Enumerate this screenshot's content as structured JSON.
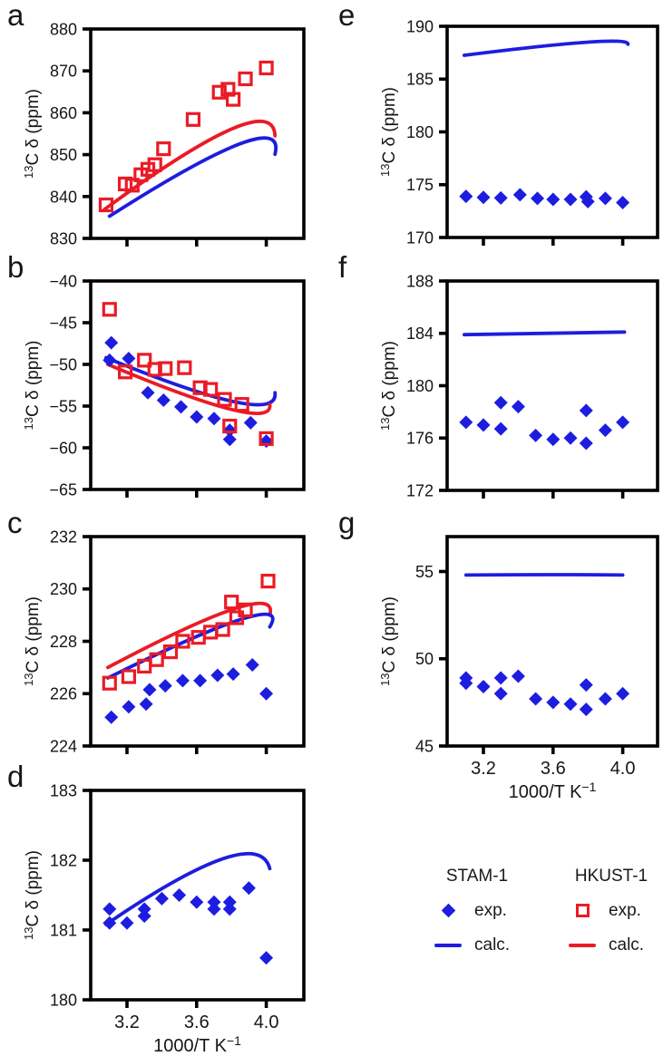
{
  "colors": {
    "stam": "#1d1de0",
    "hkust": "#ea1b26",
    "axis": "#000000"
  },
  "axes": {
    "ylabel_sup": "13",
    "ylabel_text": "C δ (ppm)",
    "xlabel_text": "1000/T K",
    "xlabel_sup": "−1"
  },
  "legend": {
    "stam": {
      "title": "STAM-1",
      "exp_label": "exp.",
      "calc_label": "calc."
    },
    "hkust": {
      "title": "HKUST-1",
      "exp_label": "exp.",
      "calc_label": "calc."
    }
  },
  "chart_data": [
    {
      "id": "a",
      "panel_label": "a",
      "type": "scatter",
      "xlim": [
        2.99,
        4.21
      ],
      "xticks": [
        3.2,
        3.6,
        4.0
      ],
      "ylim": [
        830,
        880
      ],
      "yticks": [
        830,
        840,
        850,
        860,
        870,
        880
      ],
      "ylabel": "13C δ (ppm)",
      "xlabel": "1000/T K−1",
      "show_x_tick_labels": false,
      "series": [
        {
          "name": "HKUST-1 calc.",
          "style": "line",
          "color_key": "hkust",
          "curve": {
            "start": [
              3.07,
              836.9
            ],
            "peak": [
              3.8,
              856.1
            ],
            "end": [
              4.05,
              854.5
            ]
          }
        },
        {
          "name": "STAM-1 calc.",
          "style": "line",
          "color_key": "stam",
          "curve": {
            "start": [
              3.1,
              835.3
            ],
            "peak": [
              3.85,
              852.6
            ],
            "end": [
              4.05,
              850.1
            ]
          }
        },
        {
          "name": "HKUST-1 exp.",
          "style": "open-square",
          "color_key": "hkust",
          "points": [
            [
              3.08,
              838.0
            ],
            [
              3.19,
              843.0
            ],
            [
              3.23,
              842.7
            ],
            [
              3.28,
              845.2
            ],
            [
              3.32,
              846.5
            ],
            [
              3.36,
              847.6
            ],
            [
              3.41,
              851.4
            ],
            [
              3.58,
              858.4
            ],
            [
              3.73,
              864.9
            ],
            [
              3.78,
              865.6
            ],
            [
              3.81,
              863.2
            ],
            [
              3.88,
              868.1
            ],
            [
              4.0,
              870.7
            ]
          ]
        }
      ]
    },
    {
      "id": "b",
      "panel_label": "b",
      "type": "scatter",
      "xlim": [
        2.99,
        4.21
      ],
      "xticks": [
        3.2,
        3.6,
        4.0
      ],
      "ylim": [
        -65,
        -40
      ],
      "yticks": [
        -65,
        -60,
        -55,
        -50,
        -45,
        -40
      ],
      "ylabel": "13C δ (ppm)",
      "xlabel": "1000/T K−1",
      "show_x_tick_labels": false,
      "series": [
        {
          "name": "STAM-1 calc.",
          "style": "line",
          "color_key": "stam",
          "curve": {
            "start": [
              3.08,
              -49.2
            ],
            "peak": [
              3.82,
              -54.5
            ],
            "end": [
              4.05,
              -53.4
            ]
          }
        },
        {
          "name": "HKUST-1 calc.",
          "style": "line",
          "color_key": "hkust",
          "curve": {
            "start": [
              3.09,
              -50.0
            ],
            "peak": [
              3.8,
              -55.4
            ],
            "end": [
              4.02,
              -54.8
            ]
          }
        },
        {
          "name": "STAM-1 exp.",
          "style": "diamond",
          "color_key": "stam",
          "points": [
            [
              3.11,
              -47.4
            ],
            [
              3.1,
              -49.5
            ],
            [
              3.21,
              -49.3
            ],
            [
              3.32,
              -53.4
            ],
            [
              3.41,
              -54.3
            ],
            [
              3.51,
              -55.1
            ],
            [
              3.6,
              -56.3
            ],
            [
              3.7,
              -56.5
            ],
            [
              3.79,
              -57.9
            ],
            [
              3.79,
              -59.0
            ],
            [
              3.91,
              -57.0
            ],
            [
              4.0,
              -59.2
            ]
          ]
        },
        {
          "name": "HKUST-1 exp.",
          "style": "open-square",
          "color_key": "hkust",
          "points": [
            [
              3.1,
              -43.4
            ],
            [
              3.19,
              -50.9
            ],
            [
              3.3,
              -49.5
            ],
            [
              3.36,
              -50.6
            ],
            [
              3.42,
              -50.5
            ],
            [
              3.53,
              -50.4
            ],
            [
              3.62,
              -52.8
            ],
            [
              3.68,
              -53.0
            ],
            [
              3.76,
              -54.2
            ],
            [
              3.79,
              -57.4
            ],
            [
              3.86,
              -54.8
            ],
            [
              4.0,
              -58.9
            ]
          ]
        }
      ]
    },
    {
      "id": "c",
      "panel_label": "c",
      "type": "scatter",
      "xlim": [
        2.99,
        4.21
      ],
      "xticks": [
        3.2,
        3.6,
        4.0
      ],
      "ylim": [
        224,
        232
      ],
      "yticks": [
        224,
        226,
        228,
        230,
        232
      ],
      "ylabel": "13C δ (ppm)",
      "xlabel": "1000/T K−1",
      "show_x_tick_labels": false,
      "series": [
        {
          "name": "HKUST-1 calc.",
          "style": "line",
          "color_key": "hkust",
          "curve": {
            "start": [
              3.09,
              227.0
            ],
            "peak": [
              3.82,
              229.25
            ],
            "end": [
              4.02,
              229.0
            ]
          }
        },
        {
          "name": "STAM-1 calc.",
          "style": "line",
          "color_key": "stam",
          "curve": {
            "start": [
              3.09,
              226.6
            ],
            "peak": [
              3.86,
              228.85
            ],
            "end": [
              4.02,
              228.55
            ]
          }
        },
        {
          "name": "HKUST-1 exp.",
          "style": "open-square",
          "color_key": "hkust",
          "points": [
            [
              3.1,
              226.4
            ],
            [
              3.21,
              226.65
            ],
            [
              3.3,
              227.05
            ],
            [
              3.37,
              227.3
            ],
            [
              3.45,
              227.6
            ],
            [
              3.52,
              228.0
            ],
            [
              3.61,
              228.15
            ],
            [
              3.68,
              228.35
            ],
            [
              3.75,
              228.45
            ],
            [
              3.8,
              229.5
            ],
            [
              3.83,
              228.9
            ],
            [
              3.88,
              229.2
            ],
            [
              4.01,
              230.3
            ]
          ]
        },
        {
          "name": "STAM-1 exp.",
          "style": "diamond",
          "color_key": "stam",
          "points": [
            [
              3.11,
              225.1
            ],
            [
              3.21,
              225.5
            ],
            [
              3.31,
              225.6
            ],
            [
              3.33,
              226.15
            ],
            [
              3.42,
              226.3
            ],
            [
              3.52,
              226.5
            ],
            [
              3.62,
              226.5
            ],
            [
              3.72,
              226.7
            ],
            [
              3.81,
              226.75
            ],
            [
              3.92,
              227.1
            ],
            [
              4.0,
              226.0
            ]
          ]
        }
      ]
    },
    {
      "id": "d",
      "panel_label": "d",
      "type": "scatter",
      "xlim": [
        2.99,
        4.21
      ],
      "xticks": [
        3.2,
        3.6,
        4.0
      ],
      "ylim": [
        180,
        183
      ],
      "yticks": [
        180,
        181,
        182,
        183
      ],
      "ylabel": "13C δ (ppm)",
      "xlabel": "1000/T K−1",
      "show_x_tick_labels": true,
      "series": [
        {
          "name": "STAM-1 calc.",
          "style": "line",
          "color_key": "stam",
          "curve": {
            "start": [
              3.08,
              181.08
            ],
            "peak": [
              3.75,
              182.02
            ],
            "end": [
              4.02,
              181.88
            ]
          }
        },
        {
          "name": "STAM-1 exp.",
          "style": "diamond",
          "color_key": "stam",
          "points": [
            [
              3.1,
              181.3
            ],
            [
              3.1,
              181.1
            ],
            [
              3.2,
              181.1
            ],
            [
              3.3,
              181.3
            ],
            [
              3.3,
              181.2
            ],
            [
              3.4,
              181.45
            ],
            [
              3.5,
              181.5
            ],
            [
              3.6,
              181.4
            ],
            [
              3.7,
              181.4
            ],
            [
              3.7,
              181.3
            ],
            [
              3.79,
              181.4
            ],
            [
              3.79,
              181.3
            ],
            [
              3.9,
              181.6
            ],
            [
              4.0,
              180.6
            ]
          ]
        }
      ]
    },
    {
      "id": "e",
      "panel_label": "e",
      "type": "scatter",
      "xlim": [
        2.99,
        4.21
      ],
      "xticks": [
        3.2,
        3.6,
        4.0
      ],
      "ylim": [
        170,
        190
      ],
      "yticks": [
        170,
        175,
        180,
        185,
        190
      ],
      "ylabel": "13C δ (ppm)",
      "xlabel": "1000/T K−1",
      "show_x_tick_labels": false,
      "series": [
        {
          "name": "STAM-1 calc.",
          "style": "line",
          "color_key": "stam",
          "curve": {
            "start": [
              3.09,
              187.25
            ],
            "peak": [
              3.8,
              188.5
            ],
            "end": [
              4.03,
              188.3
            ]
          }
        },
        {
          "name": "STAM-1 exp.",
          "style": "diamond",
          "color_key": "stam",
          "points": [
            [
              3.1,
              173.9
            ],
            [
              3.2,
              173.8
            ],
            [
              3.3,
              173.75
            ],
            [
              3.41,
              174.05
            ],
            [
              3.51,
              173.7
            ],
            [
              3.6,
              173.6
            ],
            [
              3.7,
              173.6
            ],
            [
              3.79,
              173.85
            ],
            [
              3.8,
              173.4
            ],
            [
              3.9,
              173.7
            ],
            [
              4.0,
              173.3
            ]
          ]
        }
      ]
    },
    {
      "id": "f",
      "panel_label": "f",
      "type": "scatter",
      "xlim": [
        2.99,
        4.21
      ],
      "xticks": [
        3.2,
        3.6,
        4.0
      ],
      "ylim": [
        172,
        188
      ],
      "yticks": [
        172,
        176,
        180,
        184,
        188
      ],
      "ylabel": "13C δ (ppm)",
      "xlabel": "1000/T K−1",
      "show_x_tick_labels": false,
      "series": [
        {
          "name": "STAM-1 calc.",
          "style": "line",
          "color_key": "stam",
          "curve": {
            "start": [
              3.09,
              183.9
            ],
            "peak": [
              3.6,
              184.0
            ],
            "end": [
              4.01,
              184.1
            ]
          }
        },
        {
          "name": "STAM-1 exp.",
          "style": "diamond",
          "color_key": "stam",
          "points": [
            [
              3.1,
              177.2
            ],
            [
              3.2,
              177.0
            ],
            [
              3.3,
              178.7
            ],
            [
              3.3,
              176.7
            ],
            [
              3.4,
              178.4
            ],
            [
              3.5,
              176.2
            ],
            [
              3.6,
              175.9
            ],
            [
              3.7,
              176.0
            ],
            [
              3.79,
              178.1
            ],
            [
              3.79,
              175.6
            ],
            [
              3.9,
              176.6
            ],
            [
              4.0,
              177.2
            ]
          ]
        }
      ]
    },
    {
      "id": "g",
      "panel_label": "g",
      "type": "scatter",
      "xlim": [
        2.99,
        4.21
      ],
      "xticks": [
        3.2,
        3.6,
        4.0
      ],
      "ylim": [
        45,
        57
      ],
      "yticks": [
        45,
        50,
        55
      ],
      "ylabel": "13C δ (ppm)",
      "xlabel": "1000/T K−1",
      "show_x_tick_labels": true,
      "series": [
        {
          "name": "STAM-1 calc.",
          "style": "line",
          "color_key": "stam",
          "curve": {
            "start": [
              3.1,
              54.8
            ],
            "peak": [
              3.55,
              54.82
            ],
            "end": [
              4.0,
              54.8
            ]
          }
        },
        {
          "name": "STAM-1 exp.",
          "style": "diamond",
          "color_key": "stam",
          "points": [
            [
              3.1,
              48.9
            ],
            [
              3.1,
              48.6
            ],
            [
              3.2,
              48.4
            ],
            [
              3.3,
              48.9
            ],
            [
              3.3,
              48.0
            ],
            [
              3.4,
              49.0
            ],
            [
              3.5,
              47.7
            ],
            [
              3.6,
              47.5
            ],
            [
              3.7,
              47.4
            ],
            [
              3.79,
              48.5
            ],
            [
              3.79,
              47.1
            ],
            [
              3.9,
              47.7
            ],
            [
              4.0,
              48.0
            ]
          ]
        }
      ]
    }
  ]
}
